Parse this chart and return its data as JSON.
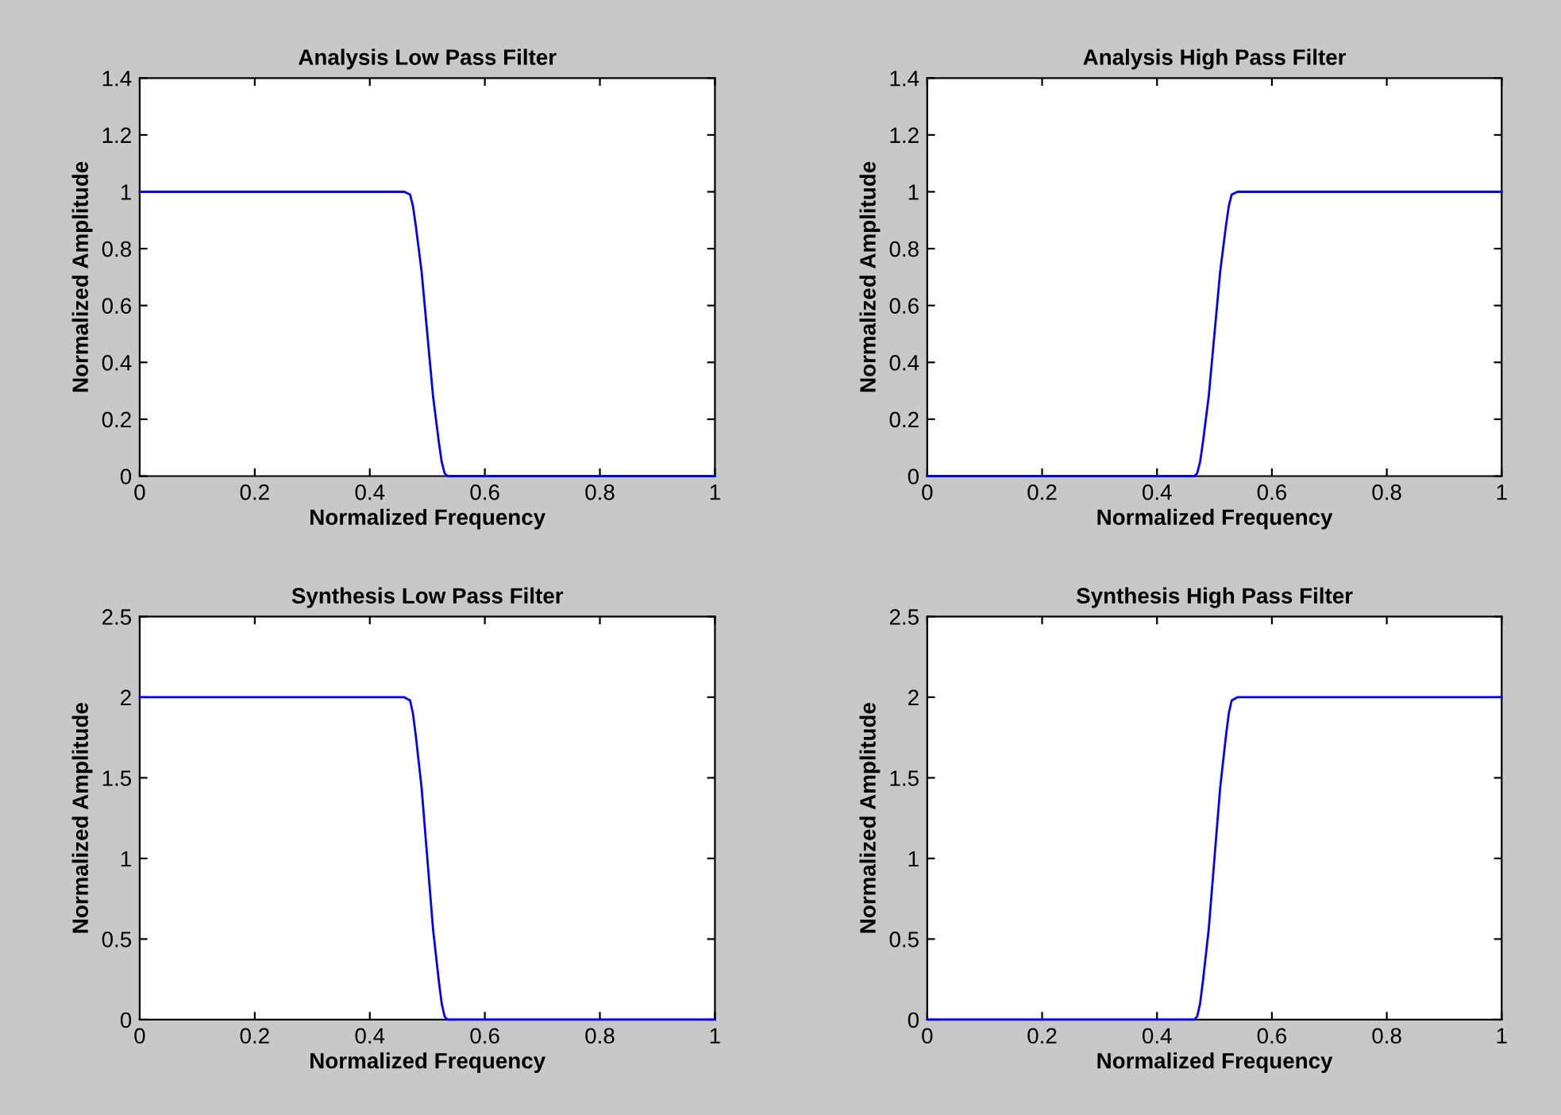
{
  "chart_data": [
    {
      "type": "line",
      "title": "Analysis Low Pass Filter",
      "xlabel": "Normalized Frequency",
      "ylabel": "Normalized Amplitude",
      "xlim": [
        0,
        1
      ],
      "ylim": [
        0,
        1.4
      ],
      "xticks": [
        0,
        0.2,
        0.4,
        0.6,
        0.8,
        1
      ],
      "yticks": [
        0,
        0.2,
        0.4,
        0.6,
        0.8,
        1,
        1.2,
        1.4
      ],
      "grid": false,
      "legend": false,
      "series": [
        {
          "color": "#0000ff",
          "x": [
            0,
            0.1,
            0.2,
            0.3,
            0.4,
            0.46,
            0.47,
            0.475,
            0.48,
            0.49,
            0.5,
            0.51,
            0.52,
            0.525,
            0.53,
            0.535,
            0.6,
            0.8,
            1
          ],
          "values": [
            1,
            1,
            1,
            1,
            1,
            1,
            0.99,
            0.95,
            0.88,
            0.72,
            0.5,
            0.28,
            0.12,
            0.05,
            0.01,
            0,
            0,
            0,
            0
          ]
        }
      ]
    },
    {
      "type": "line",
      "title": "Analysis High Pass Filter",
      "xlabel": "Normalized Frequency",
      "ylabel": "Normalized Amplitude",
      "xlim": [
        0,
        1
      ],
      "ylim": [
        0,
        1.4
      ],
      "xticks": [
        0,
        0.2,
        0.4,
        0.6,
        0.8,
        1
      ],
      "yticks": [
        0,
        0.2,
        0.4,
        0.6,
        0.8,
        1,
        1.2,
        1.4
      ],
      "grid": false,
      "legend": false,
      "series": [
        {
          "color": "#0000ff",
          "x": [
            0,
            0.2,
            0.4,
            0.465,
            0.47,
            0.475,
            0.48,
            0.49,
            0.5,
            0.51,
            0.52,
            0.525,
            0.53,
            0.54,
            0.6,
            0.7,
            0.8,
            0.9,
            1
          ],
          "values": [
            0,
            0,
            0,
            0,
            0.01,
            0.05,
            0.12,
            0.28,
            0.5,
            0.72,
            0.88,
            0.95,
            0.99,
            1,
            1,
            1,
            1,
            1,
            1
          ]
        }
      ]
    },
    {
      "type": "line",
      "title": "Synthesis Low Pass Filter",
      "xlabel": "Normalized Frequency",
      "ylabel": "Normalized Amplitude",
      "xlim": [
        0,
        1
      ],
      "ylim": [
        0,
        2.5
      ],
      "xticks": [
        0,
        0.2,
        0.4,
        0.6,
        0.8,
        1
      ],
      "yticks": [
        0,
        0.5,
        1,
        1.5,
        2,
        2.5
      ],
      "grid": false,
      "legend": false,
      "series": [
        {
          "color": "#0000ff",
          "x": [
            0,
            0.1,
            0.2,
            0.3,
            0.4,
            0.46,
            0.47,
            0.475,
            0.48,
            0.49,
            0.5,
            0.51,
            0.52,
            0.525,
            0.53,
            0.535,
            0.6,
            0.8,
            1
          ],
          "values": [
            2,
            2,
            2,
            2,
            2,
            2,
            1.98,
            1.9,
            1.76,
            1.44,
            1,
            0.56,
            0.24,
            0.1,
            0.02,
            0,
            0,
            0,
            0
          ]
        }
      ]
    },
    {
      "type": "line",
      "title": "Synthesis High Pass Filter",
      "xlabel": "Normalized Frequency",
      "ylabel": "Normalized Amplitude",
      "xlim": [
        0,
        1
      ],
      "ylim": [
        0,
        2.5
      ],
      "xticks": [
        0,
        0.2,
        0.4,
        0.6,
        0.8,
        1
      ],
      "yticks": [
        0,
        0.5,
        1,
        1.5,
        2,
        2.5
      ],
      "grid": false,
      "legend": false,
      "series": [
        {
          "color": "#0000ff",
          "x": [
            0,
            0.2,
            0.4,
            0.465,
            0.47,
            0.475,
            0.48,
            0.49,
            0.5,
            0.51,
            0.52,
            0.525,
            0.53,
            0.54,
            0.6,
            0.7,
            0.8,
            0.9,
            1
          ],
          "values": [
            0,
            0,
            0,
            0,
            0.02,
            0.1,
            0.24,
            0.56,
            1,
            1.44,
            1.76,
            1.9,
            1.98,
            2,
            2,
            2,
            2,
            2,
            2
          ]
        }
      ]
    }
  ]
}
